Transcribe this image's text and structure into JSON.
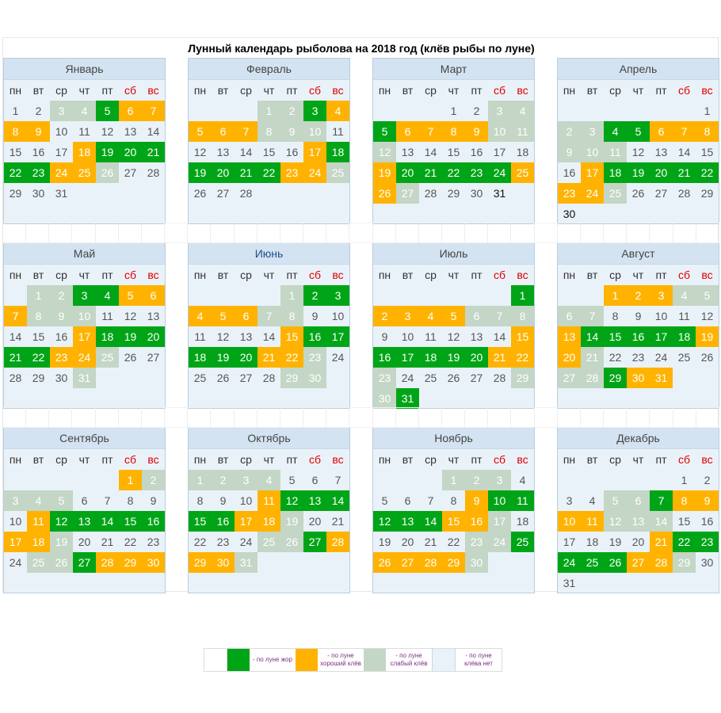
{
  "title": "Лунный календарь рыболова на 2018 год (клёв рыбы по луне)",
  "weekdays": [
    "пн",
    "вт",
    "ср",
    "чт",
    "пт",
    "сб",
    "вс"
  ],
  "colors": {
    "zhor": "#00a517",
    "good": "#ffb300",
    "weak": "#c4d6c6",
    "none": "#eaf2f9",
    "weekend": "#e00000"
  },
  "months": [
    {
      "name": "Январь",
      "offset": 0,
      "days": 31,
      "rows": 6,
      "zh": [
        5,
        19,
        20,
        21,
        22,
        23
      ],
      "good": [
        6,
        7,
        8,
        9,
        18,
        24,
        25
      ],
      "weak": [
        3,
        4,
        26
      ],
      "dark": []
    },
    {
      "name": "Февраль",
      "offset": 3,
      "days": 28,
      "rows": 6,
      "zh": [
        3,
        18,
        19,
        20,
        21,
        22
      ],
      "good": [
        4,
        5,
        6,
        7,
        17,
        23,
        24
      ],
      "weak": [
        1,
        2,
        8,
        9,
        10,
        25
      ],
      "dark": []
    },
    {
      "name": "Март",
      "offset": 3,
      "days": 31,
      "rows": 6,
      "zh": [
        5,
        20,
        21,
        22,
        23,
        24
      ],
      "good": [
        6,
        7,
        8,
        9,
        19,
        25,
        26
      ],
      "weak": [
        3,
        4,
        10,
        11,
        12,
        27
      ],
      "dark": [
        31
      ]
    },
    {
      "name": "Апрель",
      "offset": 6,
      "days": 30,
      "rows": 7,
      "zh": [
        4,
        5,
        18,
        19,
        20,
        21,
        22
      ],
      "good": [
        6,
        7,
        8,
        17,
        23,
        24
      ],
      "weak": [
        2,
        3,
        9,
        10,
        11,
        25
      ],
      "dark": [
        30
      ]
    },
    {
      "name": "Май",
      "offset": 1,
      "days": 31,
      "rows": 6,
      "zh": [
        3,
        4,
        18,
        19,
        20,
        21,
        22
      ],
      "good": [
        5,
        6,
        7,
        17,
        23,
        24
      ],
      "weak": [
        1,
        2,
        8,
        9,
        10,
        25,
        31
      ],
      "dark": []
    },
    {
      "name": "Июнь",
      "offset": 4,
      "days": 30,
      "rows": 6,
      "accent": true,
      "zh": [
        2,
        3,
        16,
        17,
        18,
        19,
        20
      ],
      "good": [
        4,
        5,
        6,
        15,
        21,
        22
      ],
      "weak": [
        1,
        7,
        8,
        23,
        29,
        30
      ],
      "dark": []
    },
    {
      "name": "Июль",
      "offset": 6,
      "days": 31,
      "rows": 7,
      "zh": [
        1,
        16,
        17,
        18,
        19,
        20,
        31
      ],
      "good": [
        2,
        3,
        4,
        5,
        15,
        21,
        22
      ],
      "weak": [
        6,
        7,
        8,
        23,
        29,
        30
      ],
      "dark": []
    },
    {
      "name": "Август",
      "offset": 2,
      "days": 31,
      "rows": 6,
      "zh": [
        14,
        15,
        16,
        17,
        18,
        29
      ],
      "good": [
        1,
        2,
        3,
        13,
        19,
        20,
        30,
        31
      ],
      "weak": [
        4,
        5,
        6,
        7,
        21,
        27,
        28
      ],
      "dark": []
    },
    {
      "name": "Сентябрь",
      "offset": 5,
      "days": 30,
      "rows": 6,
      "zh": [
        12,
        13,
        14,
        15,
        16,
        27
      ],
      "good": [
        1,
        11,
        17,
        18,
        28,
        29,
        30
      ],
      "weak": [
        2,
        3,
        4,
        5,
        19,
        25,
        26
      ],
      "dark": []
    },
    {
      "name": "Октябрь",
      "offset": 0,
      "days": 31,
      "rows": 6,
      "zh": [
        12,
        13,
        14,
        15,
        16,
        27
      ],
      "good": [
        11,
        17,
        18,
        28,
        29,
        30
      ],
      "weak": [
        1,
        2,
        3,
        4,
        19,
        25,
        26,
        31
      ],
      "dark": []
    },
    {
      "name": "Ноябрь",
      "offset": 3,
      "days": 30,
      "rows": 6,
      "zh": [
        10,
        11,
        12,
        13,
        14,
        25
      ],
      "good": [
        9,
        15,
        16,
        26,
        27,
        28,
        29
      ],
      "weak": [
        1,
        2,
        3,
        17,
        23,
        24,
        30
      ],
      "dark": []
    },
    {
      "name": "Декабрь",
      "offset": 5,
      "days": 31,
      "rows": 6,
      "zh": [
        7,
        22,
        23,
        24,
        25,
        26
      ],
      "good": [
        8,
        9,
        10,
        11,
        21,
        27,
        28
      ],
      "weak": [
        5,
        6,
        12,
        13,
        14,
        29
      ],
      "dark": []
    }
  ],
  "legend": {
    "zh": "- по луне жор",
    "good": "- по луне хороший клёв",
    "weak": "- по луне слабый клёв",
    "none": "- по луне клёва нет"
  }
}
